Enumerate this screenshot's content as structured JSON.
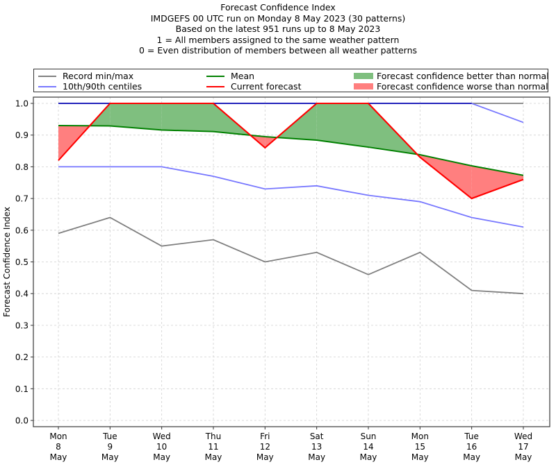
{
  "chart_data": {
    "type": "line",
    "title_lines": [
      "Forecast Confidence Index",
      "IMDGEFS 00 UTC run on Monday 8 May 2023 (30 patterns)",
      "Based on the latest 951 runs up to 8 May 2023",
      "1 = All members assigned to the same weather pattern",
      "0 = Even distribution of members between all weather patterns"
    ],
    "xlabel": "",
    "ylabel": "Forecast Confidence Index",
    "ylim": [
      0.0,
      1.0
    ],
    "yticks": [
      "0.0",
      "0.1",
      "0.2",
      "0.3",
      "0.4",
      "0.5",
      "0.6",
      "0.7",
      "0.8",
      "0.9",
      "1.0"
    ],
    "grid": true,
    "legend_placement": "top",
    "categories": [
      [
        "Mon",
        "8",
        "May"
      ],
      [
        "Tue",
        "9",
        "May"
      ],
      [
        "Wed",
        "10",
        "May"
      ],
      [
        "Thu",
        "11",
        "May"
      ],
      [
        "Fri",
        "12",
        "May"
      ],
      [
        "Sat",
        "13",
        "May"
      ],
      [
        "Sun",
        "14",
        "May"
      ],
      [
        "Mon",
        "15",
        "May"
      ],
      [
        "Tue",
        "16",
        "May"
      ],
      [
        "Wed",
        "17",
        "May"
      ]
    ],
    "series": [
      {
        "name": "Record max",
        "legend": "Record min/max",
        "color": "#7f7f7f",
        "values": [
          1.0,
          1.0,
          1.0,
          1.0,
          1.0,
          1.0,
          1.0,
          1.0,
          1.0,
          1.0
        ]
      },
      {
        "name": "Record min",
        "legend": "Record min/max",
        "color": "#7f7f7f",
        "values": [
          0.59,
          0.64,
          0.55,
          0.57,
          0.5,
          0.53,
          0.46,
          0.53,
          0.41,
          0.4
        ]
      },
      {
        "name": "90th centile",
        "legend": "10th/90th centiles",
        "color": "#7777ff",
        "values": [
          1.0,
          1.0,
          1.0,
          1.0,
          1.0,
          1.0,
          1.0,
          1.0,
          1.0,
          0.94
        ]
      },
      {
        "name": "10th centile",
        "legend": "10th/90th centiles",
        "color": "#7777ff",
        "values": [
          0.8,
          0.8,
          0.8,
          0.77,
          0.73,
          0.74,
          0.71,
          0.69,
          0.64,
          0.61
        ]
      },
      {
        "name": "Mean",
        "legend": "Mean",
        "color": "#008000",
        "values": [
          0.93,
          0.929,
          0.916,
          0.911,
          0.895,
          0.884,
          0.862,
          0.838,
          0.803,
          0.773
        ]
      },
      {
        "name": "Current forecast",
        "legend": "Current forecast",
        "color": "#ff0000",
        "values": [
          0.82,
          1.0,
          1.0,
          1.0,
          0.86,
          1.0,
          1.0,
          0.83,
          0.7,
          0.76
        ]
      }
    ],
    "fills": {
      "better": {
        "legend": "Forecast confidence better than normal",
        "color": "#7fbf7f"
      },
      "worse": {
        "legend": "Forecast confidence worse than normal",
        "color": "#ff7f7f"
      }
    },
    "overlap_line_color": "#2222bb"
  },
  "legend": {
    "record": "Record min/max",
    "centiles": "10th/90th centiles",
    "mean": "Mean",
    "current": "Current forecast",
    "better": "Forecast confidence better than normal",
    "worse": "Forecast confidence worse than normal"
  }
}
